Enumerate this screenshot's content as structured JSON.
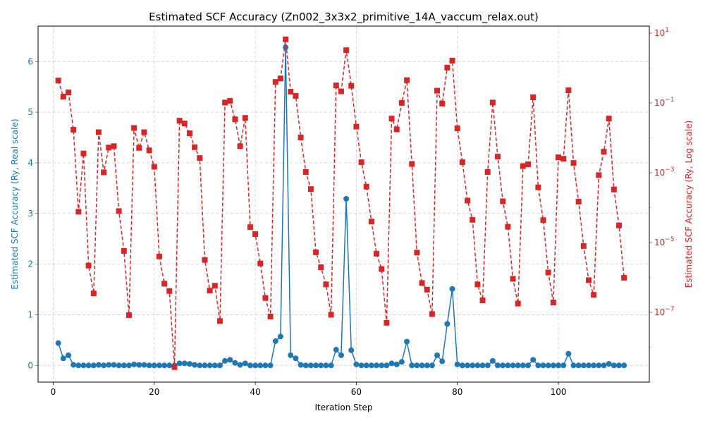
{
  "chart_data": {
    "type": "line",
    "title": "Estimated SCF Accuracy (Zn002_3x3x2_primitive_14A_vaccum_relax.out)",
    "xlabel": "Iteration Step",
    "ylabel": "Estimated SCF Accuracy (Ry, Real scale)",
    "y2label": "Estimated SCF Accuracy (Ry, Log scale)",
    "xlim": [
      -3,
      118
    ],
    "ylim": [
      -0.33,
      6.7
    ],
    "y2lim_log10": [
      -9,
      1.2
    ],
    "grid": true,
    "x_ticks": [
      0,
      20,
      40,
      60,
      80,
      100
    ],
    "y_ticks": [
      0,
      1,
      2,
      3,
      4,
      5,
      6
    ],
    "y2_ticks": [
      {
        "exp": 1,
        "label": "10^1"
      },
      {
        "exp": -1,
        "label": "10^−1"
      },
      {
        "exp": -3,
        "label": "10^−3"
      },
      {
        "exp": -5,
        "label": "10^−5"
      },
      {
        "exp": -7,
        "label": "10^−7"
      }
    ],
    "series": [
      {
        "axis": "left",
        "color": "#1f77b4",
        "marker": "circle",
        "line": "solid",
        "x": [
          1,
          2,
          3,
          4,
          5,
          6,
          7,
          8,
          9,
          10,
          11,
          12,
          13,
          14,
          15,
          16,
          17,
          18,
          19,
          20,
          21,
          22,
          23,
          24,
          25,
          26,
          27,
          28,
          29,
          30,
          31,
          32,
          33,
          34,
          35,
          36,
          37,
          38,
          39,
          40,
          41,
          42,
          43,
          44,
          45,
          46,
          47,
          48,
          49,
          50,
          51,
          52,
          53,
          54,
          55,
          56,
          57,
          58,
          59,
          60,
          61,
          62,
          63,
          64,
          65,
          66,
          67,
          68,
          69,
          70,
          71,
          72,
          73,
          74,
          75,
          76,
          77,
          78,
          79,
          80,
          81,
          82,
          83,
          84,
          85,
          86,
          87,
          88,
          89,
          90,
          91,
          92,
          93,
          94,
          95,
          96,
          97,
          98,
          99,
          100,
          101,
          102,
          103,
          104,
          105,
          106,
          107,
          108,
          109,
          110,
          111,
          112,
          113
        ],
        "values": [
          0.44,
          0.14,
          0.2,
          0.01,
          0.0,
          0.0,
          0.0,
          0.0,
          0.01,
          0.0,
          0.01,
          0.01,
          0.0,
          0.0,
          0.0,
          0.02,
          0.01,
          0.01,
          0.0,
          0.0,
          0.0,
          0.0,
          0.0,
          0.0,
          0.04,
          0.04,
          0.03,
          0.01,
          0.0,
          0.0,
          0.0,
          0.0,
          0.0,
          0.09,
          0.11,
          0.05,
          0.01,
          0.04,
          0.0,
          0.0,
          0.0,
          0.0,
          0.0,
          0.48,
          0.57,
          6.28,
          0.2,
          0.14,
          0.01,
          0.0,
          0.0,
          0.0,
          0.0,
          0.0,
          0.0,
          0.31,
          0.2,
          3.29,
          0.3,
          0.02,
          0.0,
          0.0,
          0.0,
          0.0,
          0.0,
          0.0,
          0.04,
          0.02,
          0.07,
          0.47,
          0.0,
          0.0,
          0.0,
          0.0,
          0.0,
          0.2,
          0.08,
          0.82,
          1.51,
          0.02,
          0.0,
          0.0,
          0.0,
          0.0,
          0.0,
          0.0,
          0.09,
          0.0,
          0.0,
          0.0,
          0.0,
          0.0,
          0.0,
          0.0,
          0.11,
          0.0,
          0.0,
          0.0,
          0.0,
          0.0,
          0.0,
          0.23,
          0.0,
          0.0,
          0.0,
          0.0,
          0.0,
          0.0,
          0.0,
          0.03,
          0.0,
          0.0,
          0.0
        ]
      },
      {
        "axis": "right",
        "color": "#d62728",
        "marker": "square",
        "line": "dashed",
        "x": [
          1,
          2,
          3,
          4,
          5,
          6,
          7,
          8,
          9,
          10,
          11,
          12,
          13,
          14,
          15,
          16,
          17,
          18,
          19,
          20,
          21,
          22,
          23,
          24,
          25,
          26,
          27,
          28,
          29,
          30,
          31,
          32,
          33,
          34,
          35,
          36,
          37,
          38,
          39,
          40,
          41,
          42,
          43,
          44,
          45,
          46,
          47,
          48,
          49,
          50,
          51,
          52,
          53,
          54,
          55,
          56,
          57,
          58,
          59,
          60,
          61,
          62,
          63,
          64,
          65,
          66,
          67,
          68,
          69,
          70,
          71,
          72,
          73,
          74,
          75,
          76,
          77,
          78,
          79,
          80,
          81,
          82,
          83,
          84,
          85,
          86,
          87,
          88,
          89,
          90,
          91,
          92,
          93,
          94,
          95,
          96,
          97,
          98,
          99,
          100,
          101,
          102,
          103,
          104,
          105,
          106,
          107,
          108,
          109,
          110,
          111,
          112,
          113
        ],
        "log10_values": [
          -0.36,
          -0.82,
          -0.7,
          -1.77,
          -4.12,
          -2.45,
          -5.66,
          -6.46,
          -1.84,
          -2.99,
          -2.28,
          -2.24,
          -4.1,
          -5.24,
          -7.08,
          -1.72,
          -2.29,
          -1.84,
          -2.36,
          -2.83,
          -5.4,
          -6.18,
          -6.39,
          -8.57,
          -1.51,
          -1.59,
          -1.87,
          -2.27,
          -2.58,
          -5.5,
          -6.38,
          -6.24,
          -7.25,
          -0.99,
          -0.94,
          -1.47,
          -2.24,
          -1.43,
          -4.56,
          -4.76,
          -5.6,
          -6.59,
          -7.12,
          -0.4,
          -0.3,
          0.82,
          -0.68,
          -0.8,
          -1.99,
          -2.98,
          -3.47,
          -5.28,
          -5.71,
          -6.2,
          -7.07,
          -0.5,
          -0.67,
          0.51,
          -0.51,
          -1.68,
          -2.7,
          -3.4,
          -4.4,
          -5.32,
          -5.76,
          -7.3,
          -1.45,
          -1.76,
          -1.0,
          -0.35,
          -2.75,
          -5.29,
          -6.16,
          -6.35,
          -7.05,
          -0.65,
          -1.02,
          0.01,
          0.21,
          -1.73,
          -2.7,
          -3.8,
          -4.35,
          -6.2,
          -6.66,
          -2.98,
          -0.99,
          -2.54,
          -3.82,
          -4.55,
          -6.04,
          -6.75,
          -2.81,
          -2.76,
          -0.84,
          -3.42,
          -4.36,
          -5.86,
          -6.72,
          -2.56,
          -2.6,
          -0.64,
          -2.72,
          -3.83,
          -5.1,
          -6.08,
          -6.5,
          -3.07,
          -2.4,
          -1.45,
          -3.48,
          -4.51,
          -6.01
        ]
      }
    ]
  }
}
